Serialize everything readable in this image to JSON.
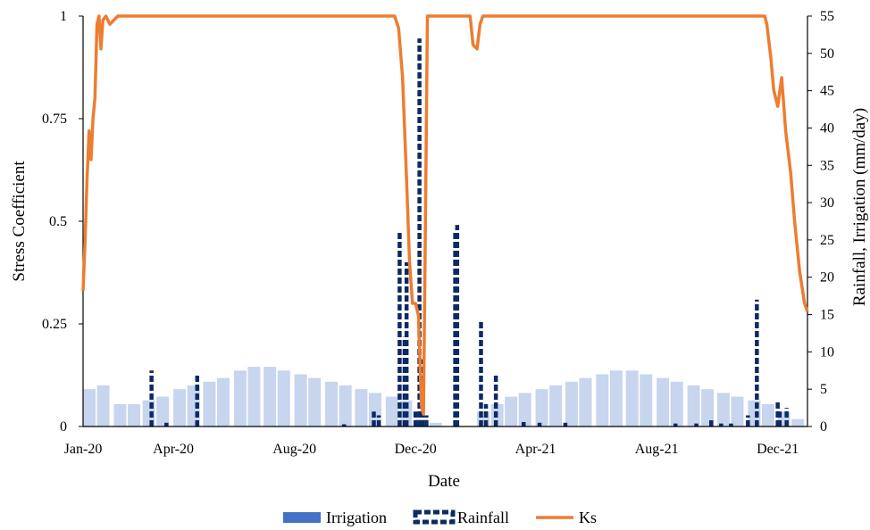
{
  "chart_data": {
    "type": "combo",
    "xlabel": "Date",
    "ylabel_left": "Stress Coefficient",
    "ylabel_right": "Rainfall, Irrigation (mm/day)",
    "x_ticks": [
      "Jan-20",
      "Apr-20",
      "Aug-20",
      "Dec-20",
      "Apr-21",
      "Aug-21",
      "Dec-21"
    ],
    "x_tick_dates": [
      "2020-01-01",
      "2020-04-01",
      "2020-08-01",
      "2020-12-01",
      "2021-04-01",
      "2021-08-01",
      "2021-12-01"
    ],
    "xlim": [
      "2020-01-01",
      "2021-12-31"
    ],
    "y_left_ticks": [
      "0",
      "0.25",
      "0.5",
      "0.75",
      "1"
    ],
    "y_left_lim": [
      0,
      1
    ],
    "y_right_ticks": [
      "0",
      "5",
      "10",
      "15",
      "20",
      "25",
      "30",
      "35",
      "40",
      "45",
      "50",
      "55"
    ],
    "y_right_lim": [
      0,
      55
    ],
    "grid": false,
    "legend_position": "bottom",
    "colors": {
      "irrigation": "#c7d5ee",
      "legend_irrigation": "#4472c4",
      "rainfall": "#0d2a66",
      "ks": "#ed7d31"
    },
    "series": [
      {
        "name": "Irrigation",
        "type": "bar",
        "axis": "right",
        "dates": [
          "2020-01-01",
          "2020-01-15",
          "2020-02-01",
          "2020-02-15",
          "2020-03-01",
          "2020-03-15",
          "2020-04-01",
          "2020-04-15",
          "2020-05-01",
          "2020-05-15",
          "2020-06-01",
          "2020-06-15",
          "2020-07-01",
          "2020-07-15",
          "2020-08-01",
          "2020-08-15",
          "2020-09-01",
          "2020-09-15",
          "2020-10-01",
          "2020-10-15",
          "2020-11-01",
          "2020-11-15",
          "2020-12-01",
          "2020-12-15",
          "2021-01-01",
          "2021-01-15",
          "2021-02-01",
          "2021-02-15",
          "2021-03-01",
          "2021-03-15",
          "2021-04-01",
          "2021-04-15",
          "2021-05-01",
          "2021-05-15",
          "2021-06-01",
          "2021-06-15",
          "2021-07-01",
          "2021-07-15",
          "2021-08-01",
          "2021-08-15",
          "2021-09-01",
          "2021-09-15",
          "2021-10-01",
          "2021-10-15",
          "2021-11-01",
          "2021-11-15",
          "2021-12-01",
          "2021-12-15"
        ],
        "values": [
          5,
          5.5,
          3,
          3,
          3.5,
          4,
          5,
          5.5,
          6,
          6.5,
          7.5,
          8,
          8,
          7.5,
          7,
          6.5,
          6,
          5.5,
          5,
          4.5,
          4,
          3.5,
          1,
          0.5,
          0,
          0,
          2,
          3,
          4,
          4.5,
          5,
          5.5,
          6,
          6.5,
          7,
          7.5,
          7.5,
          7,
          6.5,
          6,
          5.5,
          5,
          4.5,
          4,
          3.5,
          3,
          2,
          1
        ]
      },
      {
        "name": "Rainfall",
        "type": "bar",
        "axis": "right",
        "dates": [
          "2020-03-10",
          "2020-03-25",
          "2020-04-25",
          "2020-09-20",
          "2020-10-20",
          "2020-10-25",
          "2020-11-15",
          "2020-11-20",
          "2020-11-22",
          "2020-12-01",
          "2020-12-05",
          "2020-12-06",
          "2020-12-08",
          "2020-12-12",
          "2021-01-10",
          "2021-01-12",
          "2021-02-05",
          "2021-02-10",
          "2021-02-20",
          "2021-03-20",
          "2021-04-05",
          "2021-05-01",
          "2021-08-20",
          "2021-09-10",
          "2021-09-25",
          "2021-10-05",
          "2021-10-15",
          "2021-11-01",
          "2021-11-10",
          "2021-12-01",
          "2021-12-03",
          "2021-12-10"
        ],
        "values": [
          7.5,
          0.5,
          7,
          0.3,
          2,
          1.5,
          26,
          12,
          22,
          2,
          52,
          4,
          9,
          1.5,
          26,
          27,
          14,
          3,
          7,
          0.6,
          0.5,
          0.5,
          0.4,
          0.4,
          1,
          0.4,
          0.4,
          1.5,
          17,
          3.5,
          2,
          2.5
        ]
      },
      {
        "name": "Ks",
        "type": "line",
        "axis": "left",
        "dates": [
          "2020-01-01",
          "2020-01-03",
          "2020-01-05",
          "2020-01-07",
          "2020-01-09",
          "2020-01-11",
          "2020-01-13",
          "2020-01-15",
          "2020-01-17",
          "2020-01-19",
          "2020-01-21",
          "2020-01-24",
          "2020-01-28",
          "2020-02-05",
          "2020-11-10",
          "2020-11-14",
          "2020-11-18",
          "2020-11-22",
          "2020-11-25",
          "2020-11-28",
          "2020-12-01",
          "2020-12-04",
          "2020-12-07",
          "2020-12-09",
          "2020-12-11",
          "2020-12-13",
          "2020-12-14",
          "2020-12-15",
          "2021-01-25",
          "2021-01-28",
          "2021-02-01",
          "2021-02-04",
          "2021-02-07",
          "2021-11-18",
          "2021-11-20",
          "2021-11-24",
          "2021-11-27",
          "2021-12-01",
          "2021-12-05",
          "2021-12-09",
          "2021-12-14",
          "2021-12-18",
          "2021-12-23",
          "2021-12-28",
          "2021-12-31"
        ],
        "values": [
          0.33,
          0.45,
          0.6,
          0.72,
          0.65,
          0.75,
          0.8,
          0.98,
          1.0,
          0.92,
          0.99,
          1.0,
          0.98,
          1.0,
          1.0,
          0.97,
          0.85,
          0.6,
          0.4,
          0.3,
          0.3,
          0.27,
          0.05,
          0.03,
          0.5,
          1.0,
          1.0,
          1.0,
          1.0,
          0.93,
          0.92,
          0.98,
          1.0,
          1.0,
          0.98,
          0.9,
          0.82,
          0.78,
          0.85,
          0.72,
          0.62,
          0.5,
          0.38,
          0.3,
          0.28
        ]
      }
    ]
  }
}
